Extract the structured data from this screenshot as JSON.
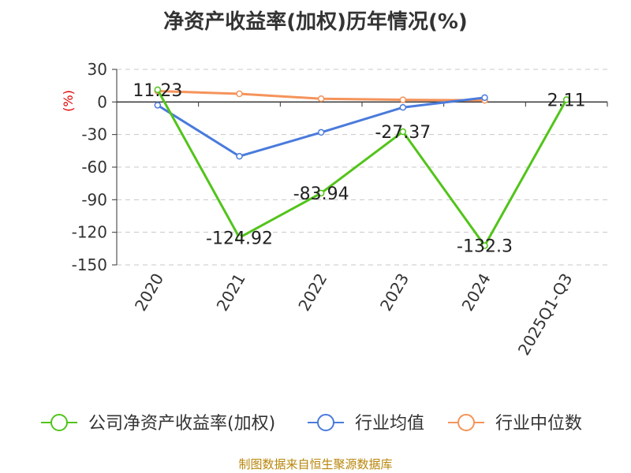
{
  "chart_data": {
    "type": "line",
    "title": "净资产收益率(加权)历年情况(%)",
    "ylabel": "(%)",
    "categories": [
      "2020",
      "2021",
      "2022",
      "2023",
      "2024",
      "2025Q1-Q3"
    ],
    "ylim": [
      -150,
      30
    ],
    "yticks": [
      30,
      0,
      -30,
      -60,
      -90,
      -120,
      -150
    ],
    "grid": true,
    "legend_position": "bottom",
    "series": [
      {
        "name": "公司净资产收益率(加权)",
        "color": "#52c41a",
        "values": [
          11.23,
          -124.92,
          -83.94,
          -27.37,
          -132.3,
          2.11
        ],
        "labels": [
          "11.23",
          "-124.92",
          "-83.94",
          "-27.37",
          "-132.3",
          "2.11"
        ]
      },
      {
        "name": "行业均值",
        "color": "#4a7bdc",
        "values": [
          -3,
          -50,
          -28,
          -5,
          4,
          null
        ]
      },
      {
        "name": "行业中位数",
        "color": "#f5935a",
        "values": [
          10,
          7.5,
          3,
          2,
          1.5,
          null
        ]
      }
    ]
  },
  "source": "制图数据来自恒生聚源数据库"
}
